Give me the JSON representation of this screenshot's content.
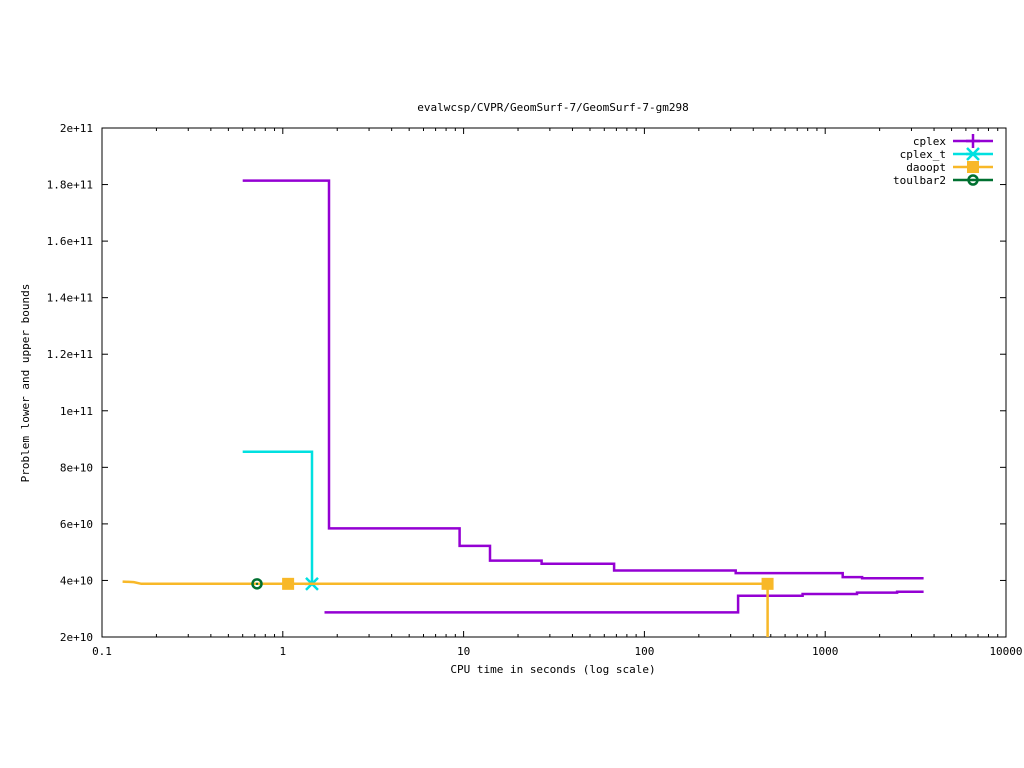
{
  "chart_data": {
    "type": "line",
    "title": "evalwcsp/CVPR/GeomSurf-7/GeomSurf-7-gm298",
    "xlabel": "CPU time in seconds (log scale)",
    "ylabel": "Problem lower and upper bounds",
    "x_scale": "log",
    "xlim": [
      0.1,
      10000
    ],
    "ylim": [
      20000000000,
      200000000000
    ],
    "x_ticks": [
      0.1,
      1,
      10,
      100,
      1000,
      10000
    ],
    "x_tick_labels": [
      "0.1",
      "1",
      "10",
      "100",
      "1000",
      "10000"
    ],
    "y_ticks": [
      20000000000,
      40000000000,
      60000000000,
      80000000000,
      100000000000,
      120000000000,
      140000000000,
      160000000000,
      180000000000,
      200000000000
    ],
    "y_tick_labels": [
      "2e+10",
      "4e+10",
      "6e+10",
      "8e+10",
      "1e+11",
      "1.2e+11",
      "1.4e+11",
      "1.6e+11",
      "1.8e+11",
      "2e+11"
    ],
    "legend_position": "top-right",
    "grid": false,
    "series": [
      {
        "name": "cplex",
        "color": "#9400d3",
        "marker": "plus",
        "marker_points": [],
        "lines": [
          [
            [
              0.6,
              181400000000
            ],
            [
              1.8,
              181400000000
            ],
            [
              1.8,
              58400000000
            ],
            [
              9.5,
              58400000000
            ],
            [
              9.5,
              52200000000
            ],
            [
              14,
              52200000000
            ],
            [
              14,
              47000000000
            ],
            [
              27,
              47000000000
            ],
            [
              27,
              45900000000
            ],
            [
              68,
              45900000000
            ],
            [
              68,
              43500000000
            ],
            [
              320,
              43500000000
            ],
            [
              320,
              42600000000
            ],
            [
              1250,
              42600000000
            ],
            [
              1250,
              41200000000
            ],
            [
              1600,
              41200000000
            ],
            [
              1600,
              40800000000
            ],
            [
              3500,
              40800000000
            ]
          ],
          [
            [
              1.7,
              28700000000
            ],
            [
              330,
              28700000000
            ],
            [
              330,
              34600000000
            ],
            [
              750,
              34600000000
            ],
            [
              750,
              35200000000
            ],
            [
              1500,
              35200000000
            ],
            [
              1500,
              35700000000
            ],
            [
              2500,
              35700000000
            ],
            [
              2500,
              36000000000
            ],
            [
              3500,
              36000000000
            ]
          ]
        ]
      },
      {
        "name": "cplex_t",
        "color": "#00e0e0",
        "marker": "cross",
        "marker_points": [
          [
            1.45,
            38800000000
          ]
        ],
        "lines": [
          [
            [
              0.6,
              85500000000
            ],
            [
              1.45,
              85500000000
            ],
            [
              1.45,
              38800000000
            ]
          ]
        ]
      },
      {
        "name": "daoopt",
        "color": "#f8b828",
        "marker": "square",
        "marker_points": [
          [
            1.07,
            38800000000
          ],
          [
            480,
            38800000000
          ]
        ],
        "lines": [
          [
            [
              0.13,
              39600000000
            ],
            [
              0.15,
              39400000000
            ],
            [
              0.165,
              38800000000
            ],
            [
              480,
              38800000000
            ],
            [
              480,
              20000000000
            ]
          ]
        ]
      },
      {
        "name": "toulbar2",
        "color": "#007030",
        "marker": "circle",
        "marker_points": [
          [
            0.72,
            38800000000
          ]
        ],
        "lines": []
      }
    ]
  }
}
